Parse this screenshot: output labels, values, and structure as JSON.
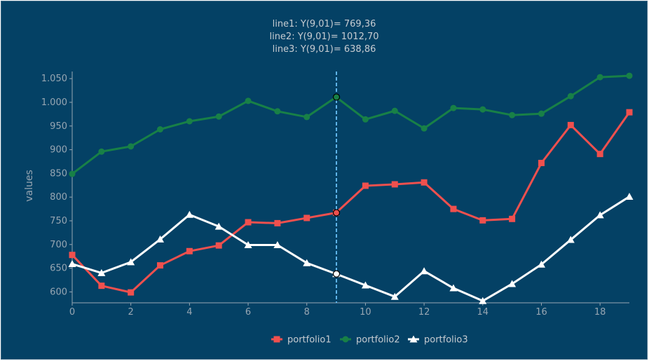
{
  "tooltip": {
    "lines": [
      "line1: Y(9,01)= 769,36",
      "line2: Y(9,01)= 1012,70",
      "line3: Y(9,01)= 638,86"
    ]
  },
  "colors": {
    "background": "#044165",
    "axis": "#97a6b2",
    "crosshair": "#5fb4ea",
    "portfolio1": "#f0504e",
    "portfolio2": "#188047",
    "portfolio3": "#ffffff"
  },
  "chart_data": {
    "type": "line",
    "title": "",
    "xlabel": "",
    "ylabel": "values",
    "xlim": [
      0,
      19
    ],
    "ylim": [
      577,
      1065
    ],
    "x": [
      0,
      1,
      2,
      3,
      4,
      5,
      6,
      7,
      8,
      9,
      10,
      11,
      12,
      13,
      14,
      15,
      16,
      17,
      18,
      19
    ],
    "x_ticks": [
      0,
      2,
      4,
      6,
      8,
      10,
      12,
      14,
      16,
      18
    ],
    "y_ticks": [
      600,
      650,
      700,
      750,
      800,
      850,
      900,
      950,
      1000,
      1050
    ],
    "y_tick_labels": [
      "600",
      "650",
      "700",
      "750",
      "800",
      "850",
      "900",
      "950",
      "1.000",
      "1.050"
    ],
    "crosshair_x": 9.01,
    "legend_position": "bottom-center",
    "series": [
      {
        "name": "portfolio1",
        "marker": "square",
        "color": "#f0504e",
        "values": [
          678,
          613,
          599,
          656,
          686,
          698,
          747,
          745,
          756,
          767,
          824,
          827,
          831,
          775,
          751,
          754,
          872,
          952,
          891,
          979
        ]
      },
      {
        "name": "portfolio2",
        "marker": "circle",
        "color": "#188047",
        "values": [
          849,
          896,
          907,
          943,
          960,
          970,
          1003,
          981,
          969,
          1011,
          964,
          982,
          945,
          988,
          985,
          973,
          976,
          1013,
          1053,
          1056
        ]
      },
      {
        "name": "portfolio3",
        "marker": "triangle",
        "color": "#ffffff",
        "values": [
          659,
          640,
          663,
          711,
          763,
          738,
          699,
          699,
          661,
          638,
          614,
          590,
          644,
          608,
          581,
          617,
          658,
          710,
          762,
          801
        ]
      }
    ]
  }
}
